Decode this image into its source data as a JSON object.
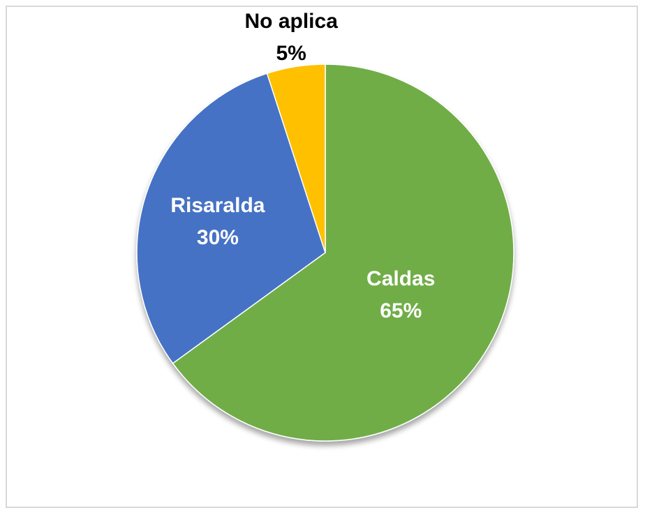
{
  "chart_data": {
    "type": "pie",
    "title": "",
    "slices": [
      {
        "label": "Caldas",
        "value": 65,
        "value_label": "65%",
        "color": "#70AD47",
        "label_color": "#ffffff",
        "label_placement": "inside"
      },
      {
        "label": "Risaralda",
        "value": 30,
        "value_label": "30%",
        "color": "#4472C4",
        "label_color": "#ffffff",
        "label_placement": "inside"
      },
      {
        "label": "No aplica",
        "value": 5,
        "value_label": "5%",
        "color": "#FFC000",
        "label_color": "#000000",
        "label_placement": "outside"
      }
    ],
    "start_angle": "12 o'clock",
    "direction": "clockwise",
    "legend": "none"
  }
}
